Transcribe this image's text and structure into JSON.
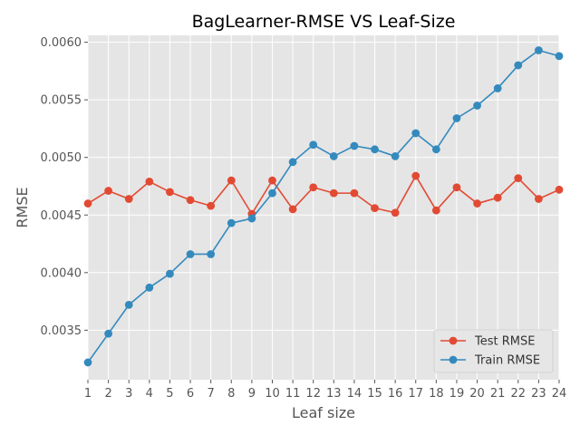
{
  "chart_data": {
    "type": "line",
    "title": "BagLearner-RMSE VS Leaf-Size",
    "xlabel": "Leaf size",
    "ylabel": "RMSE",
    "x": [
      1,
      2,
      3,
      4,
      5,
      6,
      7,
      8,
      9,
      10,
      11,
      12,
      13,
      14,
      15,
      16,
      17,
      18,
      19,
      20,
      21,
      22,
      23,
      24
    ],
    "xlim": [
      1,
      24
    ],
    "ylim": [
      0.00307,
      0.00606
    ],
    "yticks": [
      0.0035,
      0.004,
      0.0045,
      0.005,
      0.0055,
      0.006
    ],
    "ytick_labels": [
      "0.0035",
      "0.0040",
      "0.0045",
      "0.0050",
      "0.0055",
      "0.0060"
    ],
    "grid": true,
    "legend_position": "bottom-right",
    "series": [
      {
        "name": "Test RMSE",
        "color": "#e24a33",
        "values": [
          0.0046,
          0.00471,
          0.00464,
          0.00479,
          0.0047,
          0.00463,
          0.00458,
          0.0048,
          0.00451,
          0.0048,
          0.00455,
          0.00474,
          0.00469,
          0.00469,
          0.00456,
          0.00452,
          0.00484,
          0.00454,
          0.00474,
          0.0046,
          0.00465,
          0.00482,
          0.00464,
          0.00472
        ]
      },
      {
        "name": "Train RMSE",
        "color": "#348abd",
        "values": [
          0.00322,
          0.00347,
          0.00372,
          0.00387,
          0.00399,
          0.00416,
          0.00416,
          0.00443,
          0.00447,
          0.00469,
          0.00496,
          0.00511,
          0.00501,
          0.0051,
          0.00507,
          0.00501,
          0.00521,
          0.00507,
          0.00534,
          0.00545,
          0.0056,
          0.0058,
          0.00593,
          0.00588
        ]
      }
    ]
  }
}
